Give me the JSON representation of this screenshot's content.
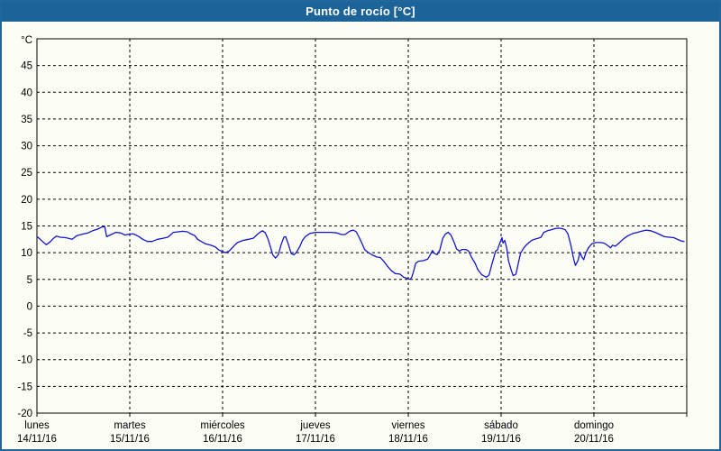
{
  "window": {
    "title": "Punto de rocío [°C]"
  },
  "colors": {
    "title_bar": "#1c6398",
    "title_text": "#ffffff",
    "outer_border": "#21679c",
    "background": "#fcfdf5",
    "grid": "#000000",
    "line": "#1414cc"
  },
  "chart_data": {
    "type": "line",
    "title": "Punto de rocío [°C]",
    "ylabel_unit": "°C",
    "ylim": [
      -20,
      50
    ],
    "yticks": [
      45,
      40,
      35,
      30,
      25,
      20,
      15,
      10,
      5,
      0,
      -5,
      -10,
      -15,
      -20
    ],
    "grid": "dashed-black",
    "legend": "none",
    "x_days": 7,
    "x_axis_days": [
      {
        "name": "lunes",
        "date": "14/11/16"
      },
      {
        "name": "martes",
        "date": "15/11/16"
      },
      {
        "name": "miércoles",
        "date": "16/11/16"
      },
      {
        "name": "jueves",
        "date": "17/11/16"
      },
      {
        "name": "viernes",
        "date": "18/11/16"
      },
      {
        "name": "sábado",
        "date": "19/11/16"
      },
      {
        "name": "domingo",
        "date": "20/11/16"
      }
    ],
    "series": [
      {
        "name": "Punto de rocío",
        "color": "#1414cc",
        "points": [
          [
            0.01,
            12.9
          ],
          [
            0.06,
            12.1
          ],
          [
            0.1,
            11.5
          ],
          [
            0.14,
            12.0
          ],
          [
            0.18,
            12.7
          ],
          [
            0.21,
            13.1
          ],
          [
            0.25,
            12.9
          ],
          [
            0.31,
            12.8
          ],
          [
            0.38,
            12.5
          ],
          [
            0.43,
            13.2
          ],
          [
            0.5,
            13.5
          ],
          [
            0.55,
            13.7
          ],
          [
            0.6,
            14.1
          ],
          [
            0.65,
            14.4
          ],
          [
            0.7,
            14.8
          ],
          [
            0.73,
            14.9
          ],
          [
            0.75,
            13.0
          ],
          [
            0.8,
            13.4
          ],
          [
            0.85,
            13.8
          ],
          [
            0.9,
            13.7
          ],
          [
            0.95,
            13.3
          ],
          [
            1.0,
            13.5
          ],
          [
            1.04,
            13.5
          ],
          [
            1.09,
            13.1
          ],
          [
            1.14,
            12.5
          ],
          [
            1.19,
            12.1
          ],
          [
            1.24,
            12.1
          ],
          [
            1.3,
            12.5
          ],
          [
            1.36,
            12.7
          ],
          [
            1.41,
            12.9
          ],
          [
            1.47,
            13.8
          ],
          [
            1.52,
            13.9
          ],
          [
            1.57,
            14.0
          ],
          [
            1.62,
            13.9
          ],
          [
            1.66,
            13.5
          ],
          [
            1.7,
            13.2
          ],
          [
            1.73,
            12.5
          ],
          [
            1.77,
            12.1
          ],
          [
            1.81,
            11.7
          ],
          [
            1.87,
            11.4
          ],
          [
            1.92,
            11.1
          ],
          [
            1.96,
            10.5
          ],
          [
            2.0,
            10.2
          ],
          [
            2.03,
            10.0
          ],
          [
            2.07,
            10.3
          ],
          [
            2.13,
            11.4
          ],
          [
            2.16,
            11.9
          ],
          [
            2.22,
            12.3
          ],
          [
            2.28,
            12.5
          ],
          [
            2.33,
            12.7
          ],
          [
            2.38,
            13.5
          ],
          [
            2.41,
            13.9
          ],
          [
            2.43,
            14.1
          ],
          [
            2.46,
            13.7
          ],
          [
            2.49,
            12.5
          ],
          [
            2.52,
            10.8
          ],
          [
            2.54,
            9.6
          ],
          [
            2.57,
            9.0
          ],
          [
            2.6,
            9.6
          ],
          [
            2.63,
            11.5
          ],
          [
            2.66,
            12.9
          ],
          [
            2.68,
            13.0
          ],
          [
            2.71,
            11.5
          ],
          [
            2.74,
            9.8
          ],
          [
            2.77,
            9.6
          ],
          [
            2.8,
            10.2
          ],
          [
            2.83,
            11.1
          ],
          [
            2.86,
            12.3
          ],
          [
            2.89,
            13.0
          ],
          [
            2.94,
            13.6
          ],
          [
            3.0,
            13.8
          ],
          [
            3.05,
            13.8
          ],
          [
            3.11,
            13.8
          ],
          [
            3.17,
            13.8
          ],
          [
            3.23,
            13.7
          ],
          [
            3.28,
            13.4
          ],
          [
            3.32,
            13.4
          ],
          [
            3.35,
            13.8
          ],
          [
            3.38,
            14.1
          ],
          [
            3.41,
            14.2
          ],
          [
            3.44,
            13.9
          ],
          [
            3.47,
            12.9
          ],
          [
            3.5,
            11.8
          ],
          [
            3.53,
            10.6
          ],
          [
            3.57,
            10.0
          ],
          [
            3.61,
            9.6
          ],
          [
            3.66,
            9.2
          ],
          [
            3.7,
            9.1
          ],
          [
            3.74,
            8.3
          ],
          [
            3.78,
            7.4
          ],
          [
            3.82,
            6.6
          ],
          [
            3.86,
            6.1
          ],
          [
            3.91,
            6.0
          ],
          [
            3.95,
            5.4
          ],
          [
            3.99,
            5.2
          ],
          [
            4.02,
            5.0
          ],
          [
            4.04,
            5.5
          ],
          [
            4.06,
            6.7
          ],
          [
            4.08,
            8.0
          ],
          [
            4.11,
            8.4
          ],
          [
            4.16,
            8.5
          ],
          [
            4.21,
            8.8
          ],
          [
            4.24,
            9.7
          ],
          [
            4.26,
            10.4
          ],
          [
            4.28,
            9.9
          ],
          [
            4.31,
            9.6
          ],
          [
            4.34,
            10.5
          ],
          [
            4.37,
            12.6
          ],
          [
            4.4,
            13.5
          ],
          [
            4.43,
            13.8
          ],
          [
            4.46,
            13.3
          ],
          [
            4.49,
            12.1
          ],
          [
            4.52,
            10.7
          ],
          [
            4.55,
            10.3
          ],
          [
            4.58,
            10.6
          ],
          [
            4.62,
            10.6
          ],
          [
            4.65,
            10.3
          ],
          [
            4.68,
            9.2
          ],
          [
            4.72,
            8.0
          ],
          [
            4.75,
            6.8
          ],
          [
            4.79,
            5.9
          ],
          [
            4.84,
            5.4
          ],
          [
            4.87,
            5.8
          ],
          [
            4.9,
            7.8
          ],
          [
            4.92,
            9.0
          ],
          [
            4.94,
            10.3
          ],
          [
            4.96,
            10.5
          ],
          [
            4.98,
            11.5
          ],
          [
            5.01,
            12.8
          ],
          [
            5.02,
            11.8
          ],
          [
            5.04,
            12.3
          ],
          [
            5.06,
            10.9
          ],
          [
            5.08,
            8.5
          ],
          [
            5.11,
            6.7
          ],
          [
            5.13,
            5.7
          ],
          [
            5.16,
            6.0
          ],
          [
            5.19,
            8.4
          ],
          [
            5.21,
            9.9
          ],
          [
            5.24,
            10.8
          ],
          [
            5.27,
            11.4
          ],
          [
            5.3,
            11.9
          ],
          [
            5.33,
            12.3
          ],
          [
            5.36,
            12.5
          ],
          [
            5.4,
            12.7
          ],
          [
            5.43,
            12.9
          ],
          [
            5.46,
            13.8
          ],
          [
            5.5,
            14.1
          ],
          [
            5.54,
            14.3
          ],
          [
            5.58,
            14.5
          ],
          [
            5.62,
            14.6
          ],
          [
            5.66,
            14.5
          ],
          [
            5.69,
            14.3
          ],
          [
            5.72,
            13.5
          ],
          [
            5.75,
            11.5
          ],
          [
            5.78,
            9.0
          ],
          [
            5.8,
            7.6
          ],
          [
            5.83,
            8.6
          ],
          [
            5.85,
            10.1
          ],
          [
            5.87,
            9.2
          ],
          [
            5.89,
            8.7
          ],
          [
            5.91,
            9.8
          ],
          [
            5.94,
            10.9
          ],
          [
            5.98,
            11.7
          ],
          [
            6.02,
            11.9
          ],
          [
            6.07,
            11.9
          ],
          [
            6.11,
            11.8
          ],
          [
            6.15,
            11.3
          ],
          [
            6.18,
            10.9
          ],
          [
            6.2,
            11.4
          ],
          [
            6.23,
            11.2
          ],
          [
            6.27,
            11.8
          ],
          [
            6.32,
            12.6
          ],
          [
            6.37,
            13.2
          ],
          [
            6.42,
            13.6
          ],
          [
            6.47,
            13.8
          ],
          [
            6.51,
            14.0
          ],
          [
            6.56,
            14.2
          ],
          [
            6.61,
            14.1
          ],
          [
            6.66,
            13.8
          ],
          [
            6.71,
            13.4
          ],
          [
            6.76,
            13.0
          ],
          [
            6.81,
            12.9
          ],
          [
            6.86,
            12.8
          ],
          [
            6.9,
            12.5
          ],
          [
            6.94,
            12.2
          ],
          [
            6.97,
            12.1
          ]
        ]
      }
    ]
  }
}
